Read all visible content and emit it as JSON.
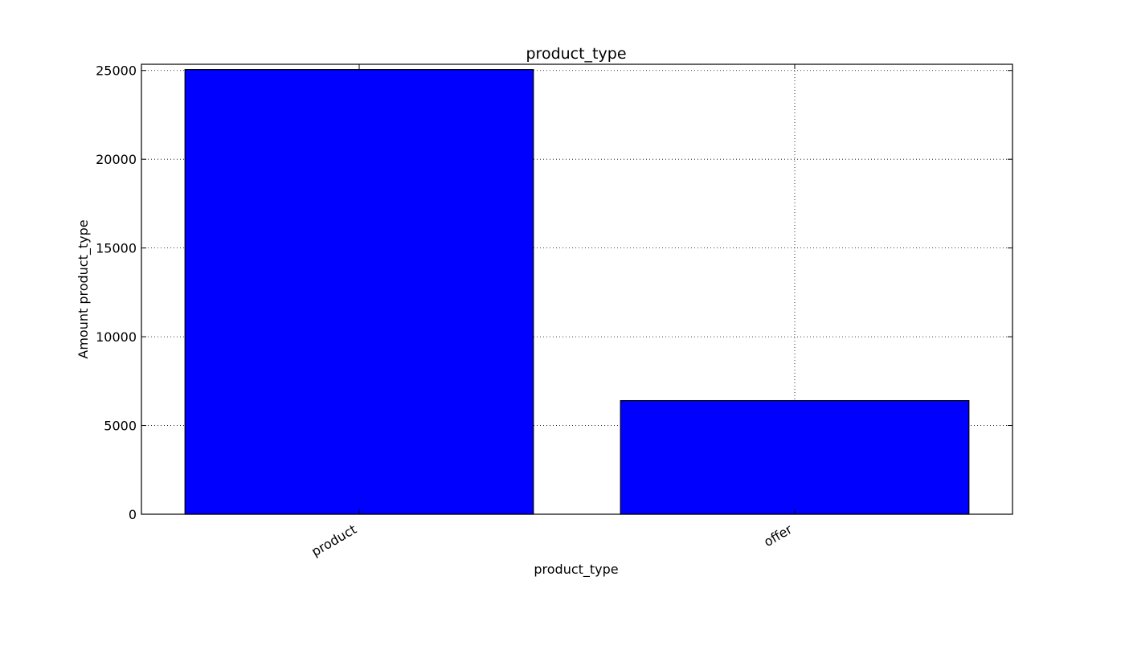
{
  "chart_data": {
    "type": "bar",
    "title": "product_type",
    "xlabel": "product_type",
    "ylabel": "Amount product_type",
    "categories": [
      "product",
      "offer"
    ],
    "values": [
      25050,
      6400
    ],
    "ylim": [
      0,
      25350
    ],
    "yticks": [
      0,
      5000,
      10000,
      15000,
      20000,
      25000
    ],
    "bar_color": "#0000ff",
    "grid": true,
    "legend": "none"
  }
}
